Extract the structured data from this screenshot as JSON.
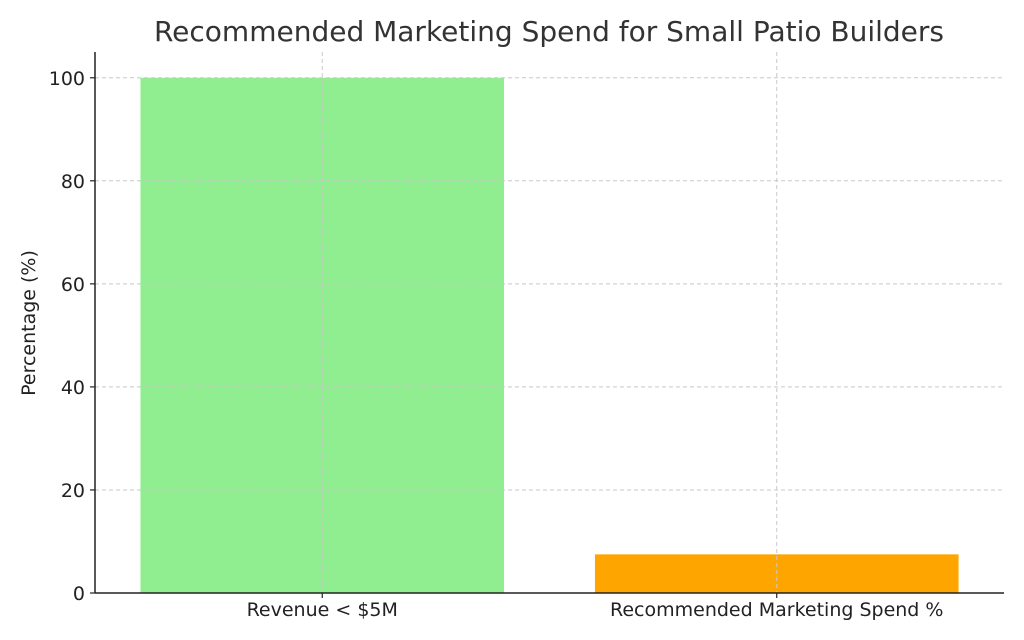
{
  "chart_data": {
    "type": "bar",
    "title": "Recommended Marketing Spend for Small Patio Builders",
    "xlabel": "",
    "ylabel": "Percentage (%)",
    "categories": [
      "Revenue < $5M",
      "Recommended Marketing Spend %"
    ],
    "values": [
      100,
      7.5
    ],
    "colors": [
      "#90ee90",
      "#ffa500"
    ],
    "ylim": [
      0,
      105
    ],
    "yticks": [
      0,
      20,
      40,
      60,
      80,
      100
    ],
    "grid": true,
    "legend": "none"
  }
}
